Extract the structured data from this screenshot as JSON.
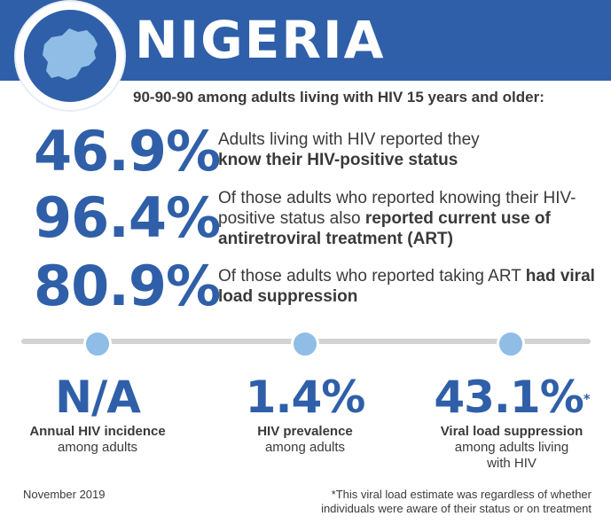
{
  "header": {
    "title": "NIGERIA",
    "map_icon": "nigeria-map-icon",
    "color": "#2f5fa8"
  },
  "subtitle": "90-90-90 among adults living with HIV 15 years and older:",
  "stats": [
    {
      "value": "46.9%",
      "text_plain": "Adults living with HIV reported they",
      "text_bold": "know their HIV-positive status",
      "text_after": ""
    },
    {
      "value": "96.4%",
      "text_plain": "Of those adults who reported knowing their HIV-positive status also",
      "text_bold": "reported current use of antiretroviral treatment (ART)",
      "text_after": ""
    },
    {
      "value": "80.9%",
      "text_plain": "Of those adults who reported taking ART",
      "text_bold": "had viral load suppression",
      "text_after": ""
    }
  ],
  "indicators": [
    {
      "value": "N/A",
      "asterisk": "",
      "label": "Annual HIV incidence",
      "sub": "among adults"
    },
    {
      "value": "1.4%",
      "asterisk": "",
      "label": "HIV prevalence",
      "sub": "among adults"
    },
    {
      "value": "43.1%",
      "asterisk": "*",
      "label": "Viral load suppression",
      "sub": "among adults living with HIV"
    }
  ],
  "footer": {
    "date": "November 2019",
    "note": "*This viral load estimate was regardless of whether individuals were aware of their status or on treatment"
  },
  "colors": {
    "accent": "#2f5fa8",
    "dot": "#8fbde6",
    "line": "#d2d2d2"
  }
}
